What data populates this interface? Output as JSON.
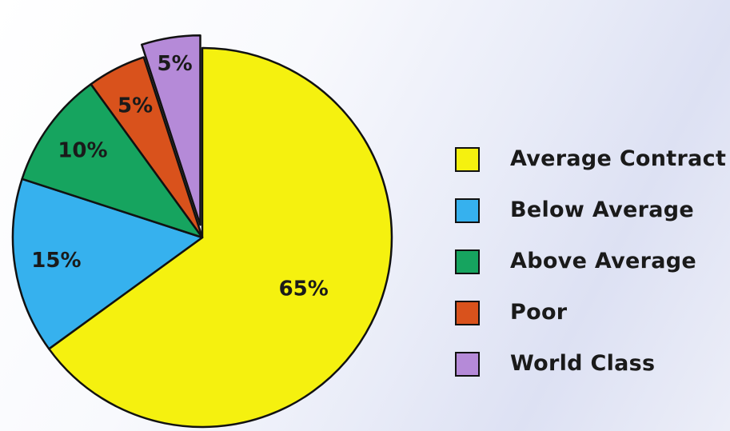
{
  "chart_data": {
    "type": "pie",
    "labels": [
      "Average Contract",
      "Below Average",
      "Above Average",
      "Poor",
      "World Class"
    ],
    "values": [
      65,
      15,
      10,
      5,
      5
    ],
    "value_labels": [
      "65%",
      "15%",
      "10%",
      "5%",
      "5%"
    ],
    "colors": [
      "#f5f10f",
      "#36b1ee",
      "#16a45f",
      "#d9521c",
      "#b58ad8"
    ],
    "exploded": [
      "World Class"
    ],
    "start": "12 o'clock",
    "direction": "clockwise",
    "legend_position": "right"
  }
}
